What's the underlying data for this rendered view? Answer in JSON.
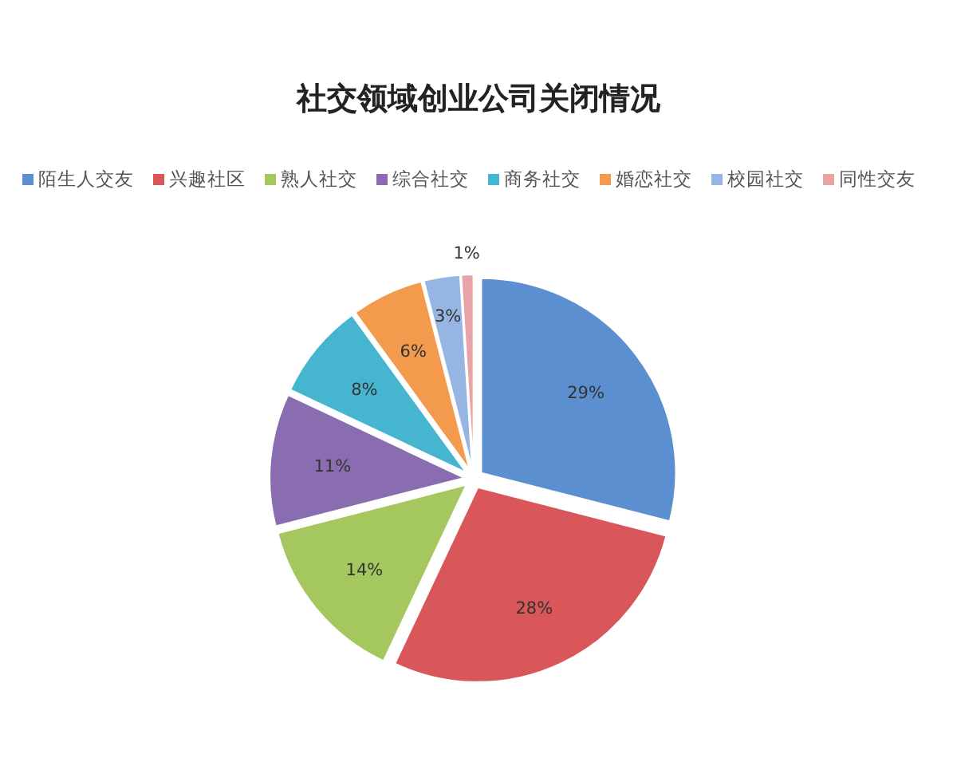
{
  "chart_data": {
    "type": "pie",
    "title": "社交领域创业公司关闭情况",
    "categories": [
      "陌生人交友",
      "兴趣社区",
      "熟人社交",
      "综合社交",
      "商务社交",
      "婚恋社交",
      "校园社交",
      "同性交友"
    ],
    "values": [
      29,
      28,
      14,
      11,
      8,
      6,
      3,
      1
    ],
    "value_labels": [
      "29%",
      "28%",
      "14%",
      "11%",
      "8%",
      "6%",
      "3%",
      "1%"
    ],
    "colors": [
      "#5b8fd0",
      "#d9575a",
      "#a5c85e",
      "#8a6cb0",
      "#45b5d0",
      "#f39a4c",
      "#97b5e2",
      "#e8a3a8"
    ],
    "legend": "top"
  }
}
